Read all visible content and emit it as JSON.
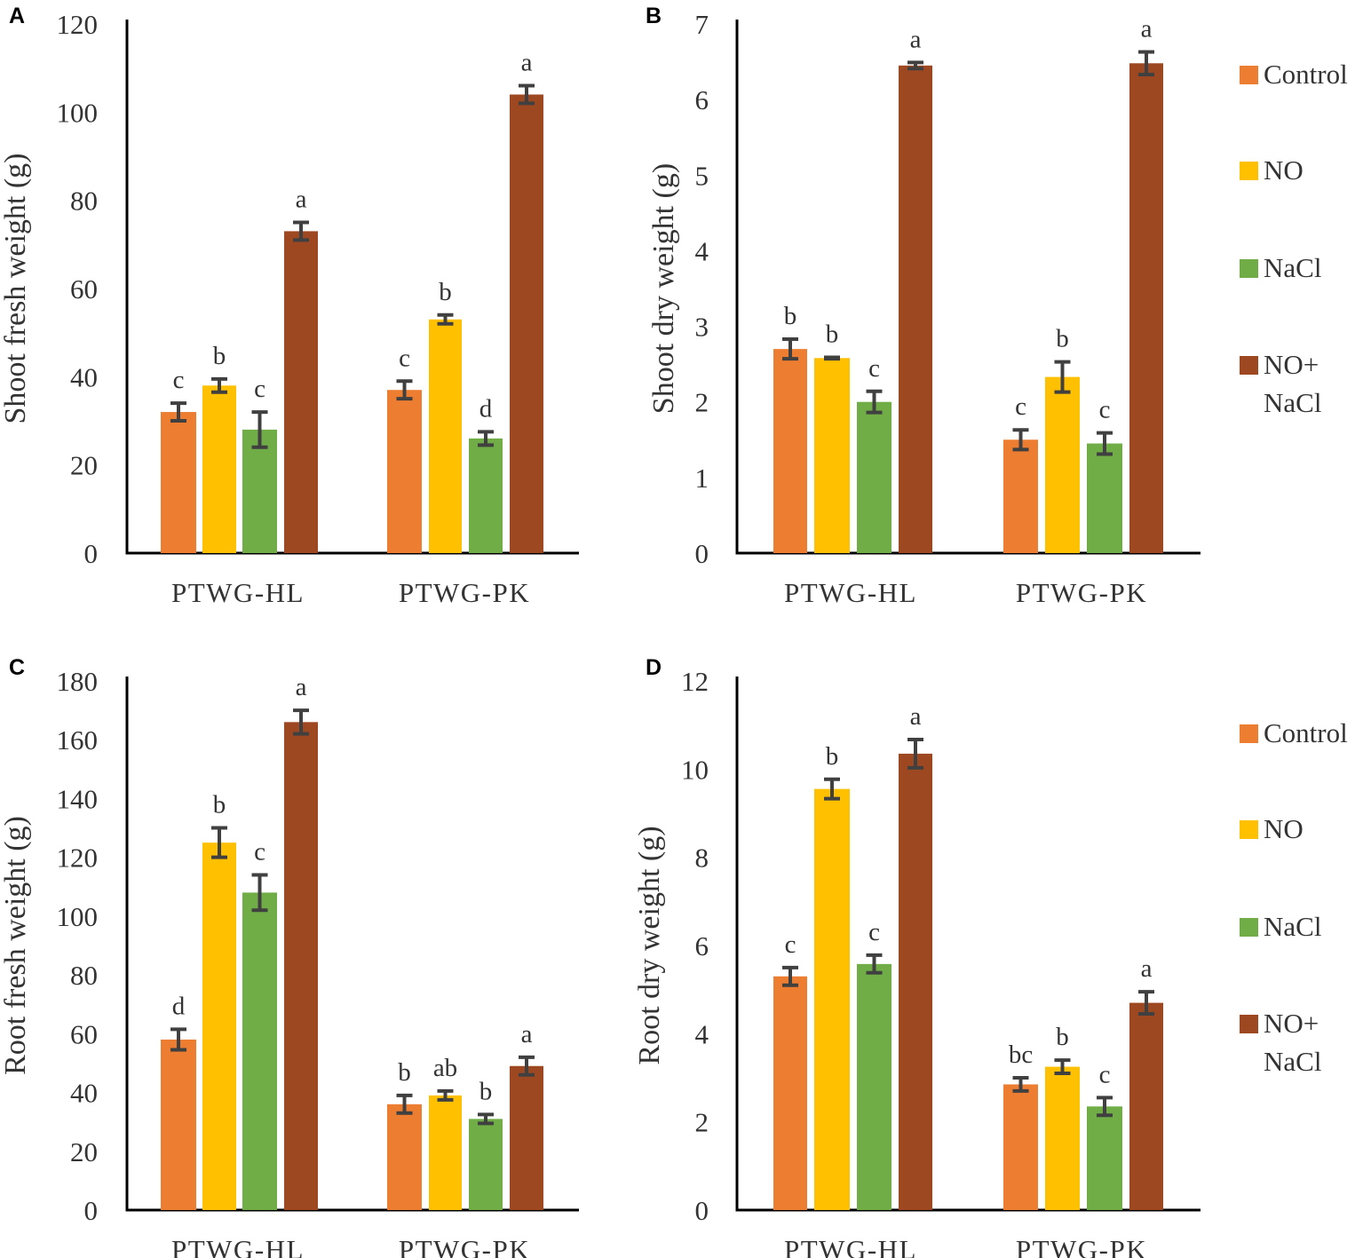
{
  "legend": [
    {
      "label": "Control",
      "color": "#ED7D31"
    },
    {
      "label": "NO",
      "color": "#FFC000"
    },
    {
      "label": "NaCl",
      "color": "#70AD47"
    },
    {
      "label": "NO+",
      "label2": "NaCl",
      "color": "#9E4822"
    }
  ],
  "chart_data": [
    {
      "type": "bar",
      "panel": "A",
      "title": "",
      "xlabel": "",
      "ylabel": "Shoot fresh weight (g)",
      "ylim": [
        0,
        120
      ],
      "yticks": [
        0,
        20,
        40,
        60,
        80,
        100,
        120
      ],
      "categories": [
        "PTWG-HL",
        "PTWG-PK"
      ],
      "series": [
        {
          "name": "Control",
          "values": [
            32,
            37
          ],
          "errors": [
            2,
            2
          ],
          "letters": [
            "c",
            "c"
          ]
        },
        {
          "name": "NO",
          "values": [
            38,
            53
          ],
          "errors": [
            1.5,
            1
          ],
          "letters": [
            "b",
            "b"
          ]
        },
        {
          "name": "NaCl",
          "values": [
            28,
            26
          ],
          "errors": [
            4,
            1.5
          ],
          "letters": [
            "c",
            "d"
          ]
        },
        {
          "name": "NO+ NaCl",
          "values": [
            73,
            104
          ],
          "errors": [
            2,
            2
          ],
          "letters": [
            "a",
            "a"
          ]
        }
      ]
    },
    {
      "type": "bar",
      "panel": "B",
      "title": "",
      "xlabel": "",
      "ylabel": "Shoot dry weight (g)",
      "ylim": [
        0,
        7
      ],
      "yticks": [
        0,
        1,
        2,
        3,
        4,
        5,
        6,
        7
      ],
      "categories": [
        "PTWG-HL",
        "PTWG-PK"
      ],
      "series": [
        {
          "name": "Control",
          "values": [
            2.7,
            1.5
          ],
          "errors": [
            0.13,
            0.13
          ],
          "letters": [
            "b",
            "c"
          ]
        },
        {
          "name": "NO",
          "values": [
            2.58,
            2.33
          ],
          "errors": [
            0.01,
            0.2
          ],
          "letters": [
            "b",
            "b"
          ]
        },
        {
          "name": "NaCl",
          "values": [
            2.0,
            1.45
          ],
          "errors": [
            0.14,
            0.14
          ],
          "letters": [
            "c",
            "c"
          ]
        },
        {
          "name": "NO+ NaCl",
          "values": [
            6.45,
            6.48
          ],
          "errors": [
            0.04,
            0.15
          ],
          "letters": [
            "a",
            "a"
          ]
        }
      ]
    },
    {
      "type": "bar",
      "panel": "C",
      "title": "",
      "xlabel": "",
      "ylabel": "Root fresh weight (g)",
      "ylim": [
        0,
        180
      ],
      "yticks": [
        0,
        20,
        40,
        60,
        80,
        100,
        120,
        140,
        160,
        180
      ],
      "categories": [
        "PTWG-HL",
        "PTWG-PK"
      ],
      "series": [
        {
          "name": "Control",
          "values": [
            58,
            36
          ],
          "errors": [
            3.5,
            3
          ],
          "letters": [
            "d",
            "b"
          ]
        },
        {
          "name": "NO",
          "values": [
            125,
            39
          ],
          "errors": [
            5,
            1.5
          ],
          "letters": [
            "b",
            "ab"
          ]
        },
        {
          "name": "NaCl",
          "values": [
            108,
            31
          ],
          "errors": [
            6,
            1.5
          ],
          "letters": [
            "c",
            "b"
          ]
        },
        {
          "name": "NO+ NaCl",
          "values": [
            166,
            49
          ],
          "errors": [
            4,
            3
          ],
          "letters": [
            "a",
            "a"
          ]
        }
      ]
    },
    {
      "type": "bar",
      "panel": "D",
      "title": "",
      "xlabel": "",
      "ylabel": "Root dry weight (g)",
      "ylim": [
        0,
        12
      ],
      "yticks": [
        0,
        2,
        4,
        6,
        8,
        10,
        12
      ],
      "categories": [
        "PTWG-HL",
        "PTWG-PK"
      ],
      "series": [
        {
          "name": "Control",
          "values": [
            5.3,
            2.85
          ],
          "errors": [
            0.2,
            0.15
          ],
          "letters": [
            "c",
            "bc"
          ]
        },
        {
          "name": "NO",
          "values": [
            9.55,
            3.25
          ],
          "errors": [
            0.22,
            0.15
          ],
          "letters": [
            "b",
            "b"
          ]
        },
        {
          "name": "NaCl",
          "values": [
            5.58,
            2.35
          ],
          "errors": [
            0.2,
            0.2
          ],
          "letters": [
            "c",
            "c"
          ]
        },
        {
          "name": "NO+ NaCl",
          "values": [
            10.35,
            4.7
          ],
          "errors": [
            0.32,
            0.25
          ],
          "letters": [
            "a",
            "a"
          ]
        }
      ]
    }
  ]
}
